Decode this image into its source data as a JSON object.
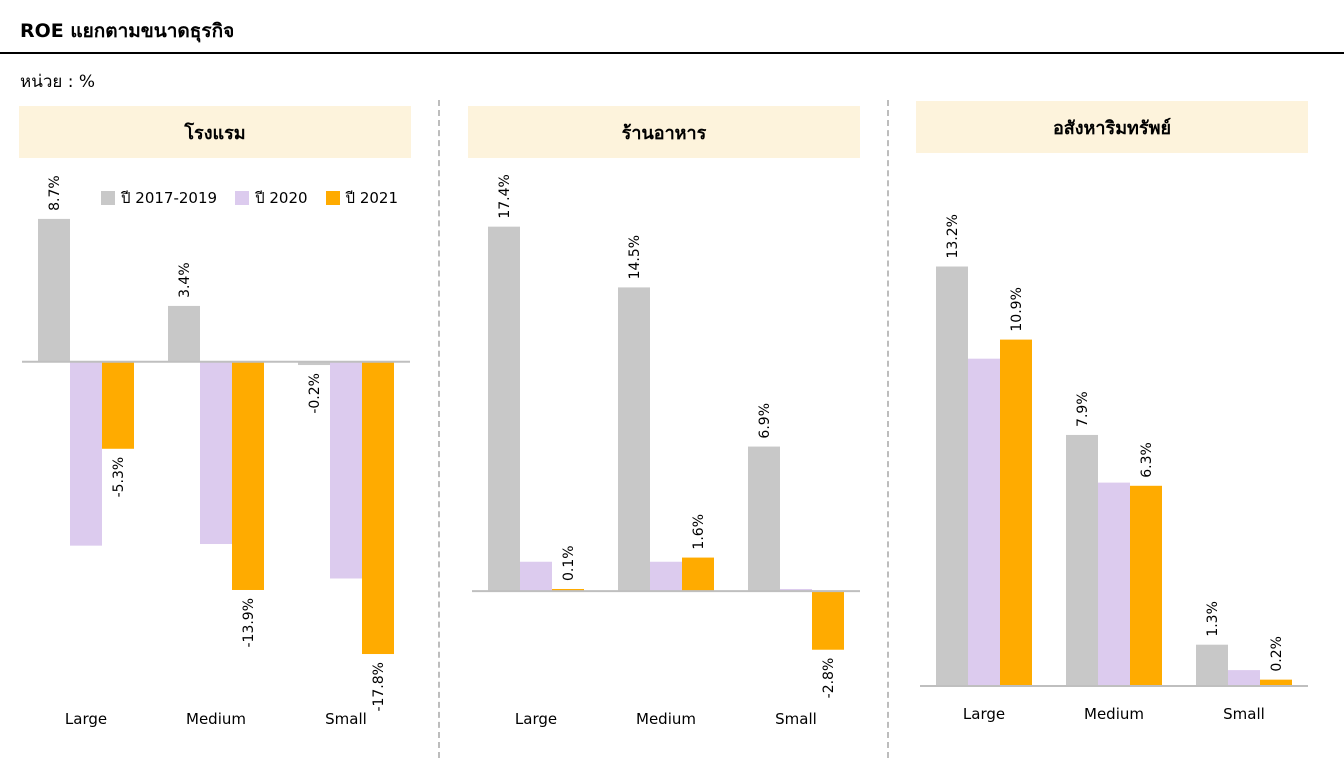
{
  "header": {
    "title": "ROE แยกตามขนาดธุรกิจ",
    "unit": "หน่วย : %"
  },
  "legend": [
    {
      "name": "ปี 2017-2019",
      "color": "#c8c8c8"
    },
    {
      "name": "ปี 2020",
      "color": "#dccbee"
    },
    {
      "name": "ปี 2021",
      "color": "#ffab00"
    }
  ],
  "chart_data": [
    {
      "type": "bar",
      "title": "โรงแรม",
      "categories": [
        "Large",
        "Medium",
        "Small"
      ],
      "series": [
        {
          "name": "ปี 2017-2019",
          "values": [
            8.7,
            3.4,
            -0.2
          ],
          "labels": [
            "8.7%",
            "3.4%",
            "-0.2%"
          ]
        },
        {
          "name": "ปี 2020",
          "values": [
            -11.2,
            -11.1,
            -13.2
          ],
          "labels": [
            "",
            "",
            ""
          ]
        },
        {
          "name": "ปี 2021",
          "values": [
            -5.3,
            -13.9,
            -17.8
          ],
          "labels": [
            "-5.3%",
            "-13.9%",
            "-17.8%"
          ]
        }
      ],
      "ylim": [
        -20.6,
        11.8
      ],
      "grid": false,
      "legend": "top-right"
    },
    {
      "type": "bar",
      "title": "ร้านอาหาร",
      "categories": [
        "Large",
        "Medium",
        "Small"
      ],
      "series": [
        {
          "name": "ปี 2017-2019",
          "values": [
            17.4,
            14.5,
            6.9
          ],
          "labels": [
            "17.4%",
            "14.5%",
            "6.9%"
          ]
        },
        {
          "name": "ปี 2020",
          "values": [
            1.4,
            1.4,
            0.1
          ],
          "labels": [
            "",
            "",
            ""
          ]
        },
        {
          "name": "ปี 2021",
          "values": [
            0.1,
            1.6,
            -2.8
          ],
          "labels": [
            "0.1%",
            "1.6%",
            "-2.8%"
          ]
        }
      ],
      "ylim": [
        -5.2,
        20.2
      ],
      "grid": false
    },
    {
      "type": "bar",
      "title": "อสังหาริมทรัพย์",
      "categories": [
        "Large",
        "Medium",
        "Small"
      ],
      "series": [
        {
          "name": "ปี 2017-2019",
          "values": [
            13.2,
            7.9,
            1.3
          ],
          "labels": [
            "13.2%",
            "7.9%",
            "1.3%"
          ]
        },
        {
          "name": "ปี 2020",
          "values": [
            10.3,
            6.4,
            0.5
          ],
          "labels": [
            "",
            "",
            ""
          ]
        },
        {
          "name": "ปี 2021",
          "values": [
            10.9,
            6.3,
            0.2
          ],
          "labels": [
            "10.9%",
            "6.3%",
            "0.2%"
          ]
        }
      ],
      "ylim": [
        0,
        16.3
      ],
      "grid": false
    }
  ]
}
